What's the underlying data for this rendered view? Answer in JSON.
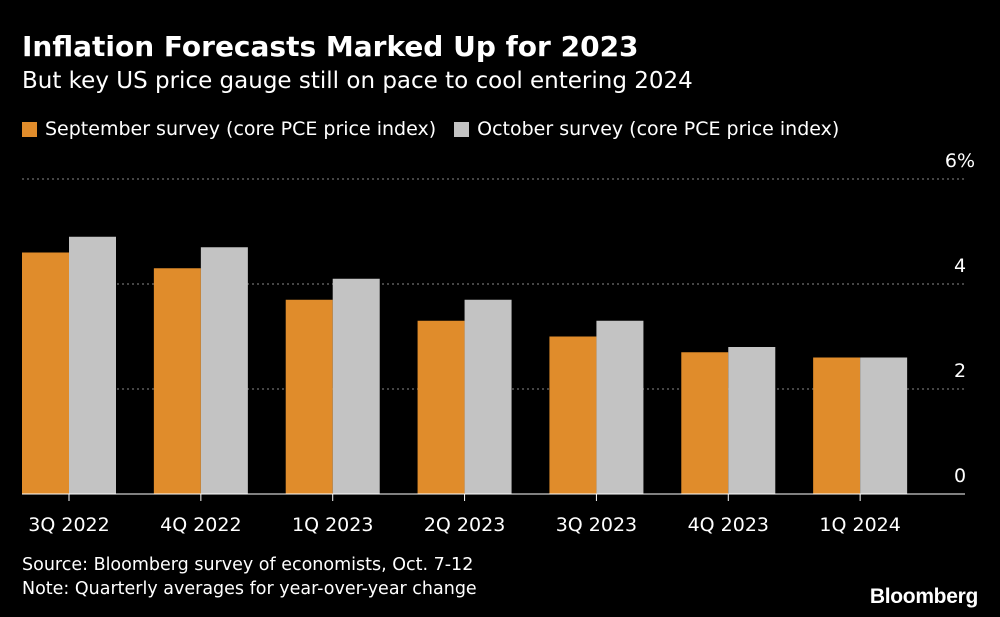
{
  "title": "Inflation Forecasts Marked Up for 2023",
  "subtitle": "But key US price gauge still on pace to cool entering 2024",
  "colors": {
    "background": "#000000",
    "september": "#E08C2B",
    "october": "#C3C3C3",
    "grid": "#8a8a8a",
    "text": "#ffffff"
  },
  "legend": {
    "series1": "September survey (core PCE price index)",
    "series2": "October survey (core PCE price index)"
  },
  "chart_data": {
    "type": "bar",
    "categories": [
      "3Q 2022",
      "4Q 2022",
      "1Q 2023",
      "2Q 2023",
      "3Q 2023",
      "4Q 2023",
      "1Q 2024"
    ],
    "series": [
      {
        "name": "September survey (core PCE price index)",
        "values": [
          4.6,
          4.3,
          3.7,
          3.3,
          3.0,
          2.7,
          2.6
        ]
      },
      {
        "name": "October survey (core PCE price index)",
        "values": [
          4.9,
          4.7,
          4.1,
          3.7,
          3.3,
          2.8,
          2.6
        ]
      }
    ],
    "ylim": [
      0,
      6
    ],
    "yticks": [
      0,
      2,
      4,
      6
    ],
    "ytick_labels": [
      "0",
      "2",
      "4",
      "6%"
    ],
    "grid": true,
    "legend_position": "top-left",
    "yaxis_position": "right"
  },
  "footer": {
    "source": "Source: Bloomberg survey of economists, Oct. 7-12",
    "note": "Note: Quarterly averages for year-over-year change"
  },
  "brand": "Bloomberg"
}
